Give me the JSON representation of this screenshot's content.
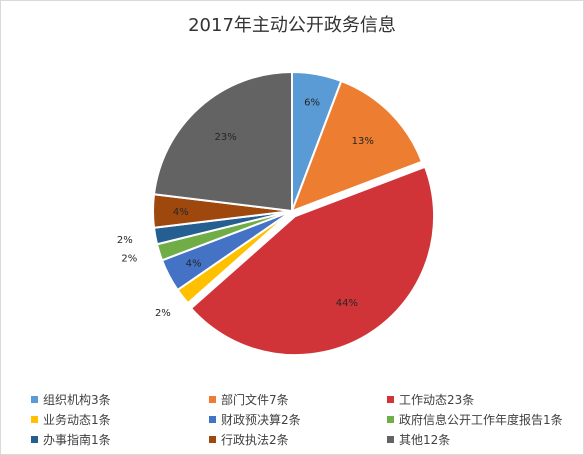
{
  "chart_data": {
    "type": "pie",
    "title": "2017年主动公开政务信息",
    "categories": [
      "组织机构",
      "部门文件",
      "工作动态",
      "业务动态",
      "财政预决算",
      "政府信息公开工作年度报告",
      "办事指南",
      "行政执法",
      "其他"
    ],
    "values": [
      3,
      7,
      23,
      1,
      2,
      1,
      1,
      2,
      12
    ],
    "data_labels": [
      "6%",
      "13%",
      "44%",
      "2%",
      "4%",
      "2%",
      "2%",
      "4%",
      "23%"
    ],
    "legend_labels": [
      "组织机构3条",
      "部门文件7条",
      "工作动态23条",
      "业务动态1条",
      "财政预决算2条",
      "政府信息公开工作年度报告1条",
      "办事指南1条",
      "行政执法2条",
      "其他12条"
    ],
    "colors": [
      "#5b9bd5",
      "#ed7d31",
      "#d13438",
      "#ffc000",
      "#4472c4",
      "#70ad47",
      "#255e91",
      "#9e480e",
      "#636363"
    ],
    "exploded_slice": "工作动态",
    "legend_position": "bottom"
  }
}
